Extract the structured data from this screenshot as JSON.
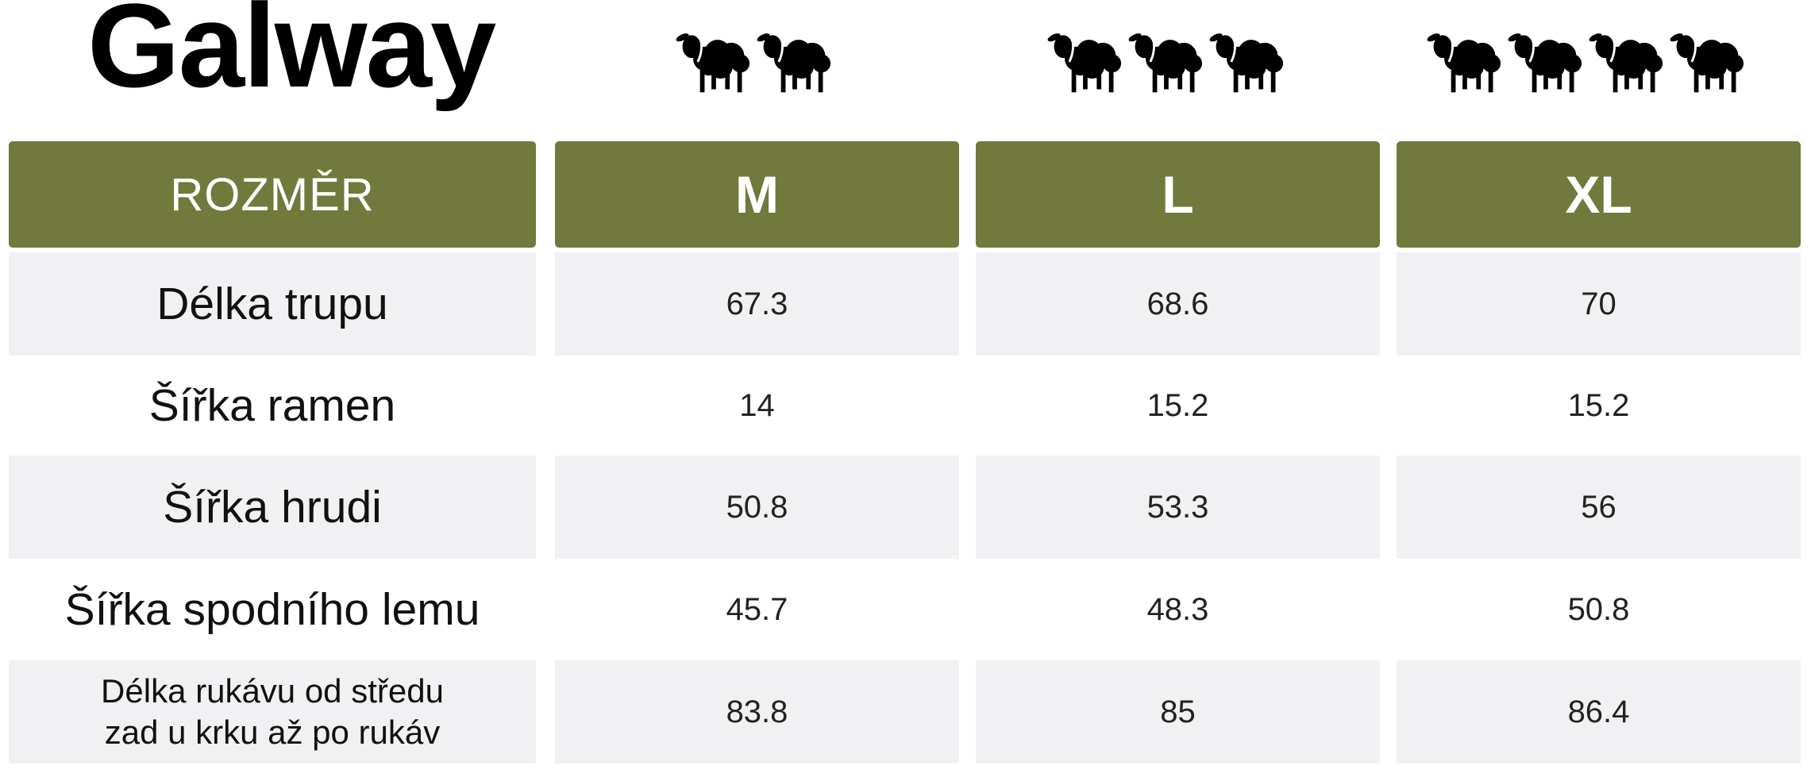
{
  "title": "Galway",
  "header": {
    "label": "ROZMĚR",
    "sizes": [
      "M",
      "L",
      "XL"
    ]
  },
  "sheep_icons": [
    {
      "size": "M",
      "count": 2
    },
    {
      "size": "L",
      "count": 3
    },
    {
      "size": "XL",
      "count": 4
    }
  ],
  "rows": [
    {
      "label": "Délka trupu",
      "values": [
        "67.3",
        "68.6",
        "70"
      ]
    },
    {
      "label": "Šířka ramen",
      "values": [
        "14",
        "15.2",
        "15.2"
      ]
    },
    {
      "label": "Šířka hrudi",
      "values": [
        "50.8",
        "53.3",
        "56"
      ]
    },
    {
      "label": "Šířka spodního lemu",
      "values": [
        "45.7",
        "48.3",
        "50.8"
      ]
    },
    {
      "label_lines": [
        "Délka rukávu od středu",
        "zad u krku až po rukáv"
      ],
      "values": [
        "83.8",
        "85",
        "86.4"
      ]
    }
  ],
  "colors": {
    "header_bg": "#71793c",
    "row_shade": "#f1f1f3",
    "sheep": "#000000"
  }
}
